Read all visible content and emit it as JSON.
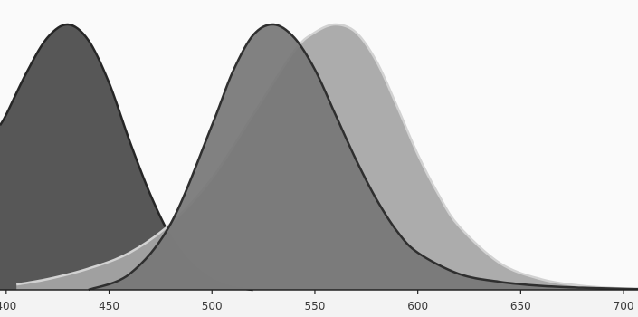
{
  "chart_data": {
    "type": "area",
    "title": "",
    "xlabel": "",
    "ylabel": "",
    "xlim": [
      397,
      707
    ],
    "ylim": [
      0,
      1
    ],
    "grid": false,
    "legend": "none",
    "x_ticks": [
      400,
      450,
      500,
      550,
      600,
      650,
      700
    ],
    "x_tick_labels": [
      "400",
      "450",
      "500",
      "550",
      "600",
      "650",
      "700"
    ],
    "series": [
      {
        "peak_wavelength": 430,
        "fill": "#4a4a4a",
        "stroke": "#262626",
        "x": [
          397,
          400,
          410,
          420,
          430,
          440,
          450,
          460,
          470,
          480,
          490,
          500,
          510,
          520
        ],
        "values": [
          0.62,
          0.66,
          0.82,
          0.95,
          1.0,
          0.94,
          0.78,
          0.56,
          0.36,
          0.2,
          0.1,
          0.04,
          0.01,
          0.0
        ]
      },
      {
        "peak_wavelength": 530,
        "fill": "#777777",
        "stroke": "#2f2f2f",
        "x": [
          440,
          460,
          480,
          500,
          510,
          520,
          530,
          540,
          550,
          560,
          570,
          580,
          590,
          600,
          620,
          640,
          660,
          680,
          700,
          707
        ],
        "values": [
          0.0,
          0.06,
          0.25,
          0.62,
          0.82,
          0.96,
          1.0,
          0.95,
          0.83,
          0.66,
          0.49,
          0.34,
          0.22,
          0.14,
          0.06,
          0.03,
          0.015,
          0.008,
          0.004,
          0.003
        ]
      },
      {
        "peak_wavelength": 560,
        "fill": "#a6a6a6",
        "stroke": "#d2d2d2",
        "x": [
          405,
          420,
          440,
          460,
          480,
          500,
          520,
          540,
          550,
          560,
          570,
          580,
          590,
          600,
          610,
          620,
          640,
          660,
          680,
          700,
          707
        ],
        "values": [
          0.02,
          0.04,
          0.08,
          0.14,
          0.25,
          0.42,
          0.66,
          0.9,
          0.97,
          1.0,
          0.97,
          0.86,
          0.69,
          0.51,
          0.36,
          0.24,
          0.1,
          0.04,
          0.015,
          0.005,
          0.003
        ]
      }
    ]
  }
}
